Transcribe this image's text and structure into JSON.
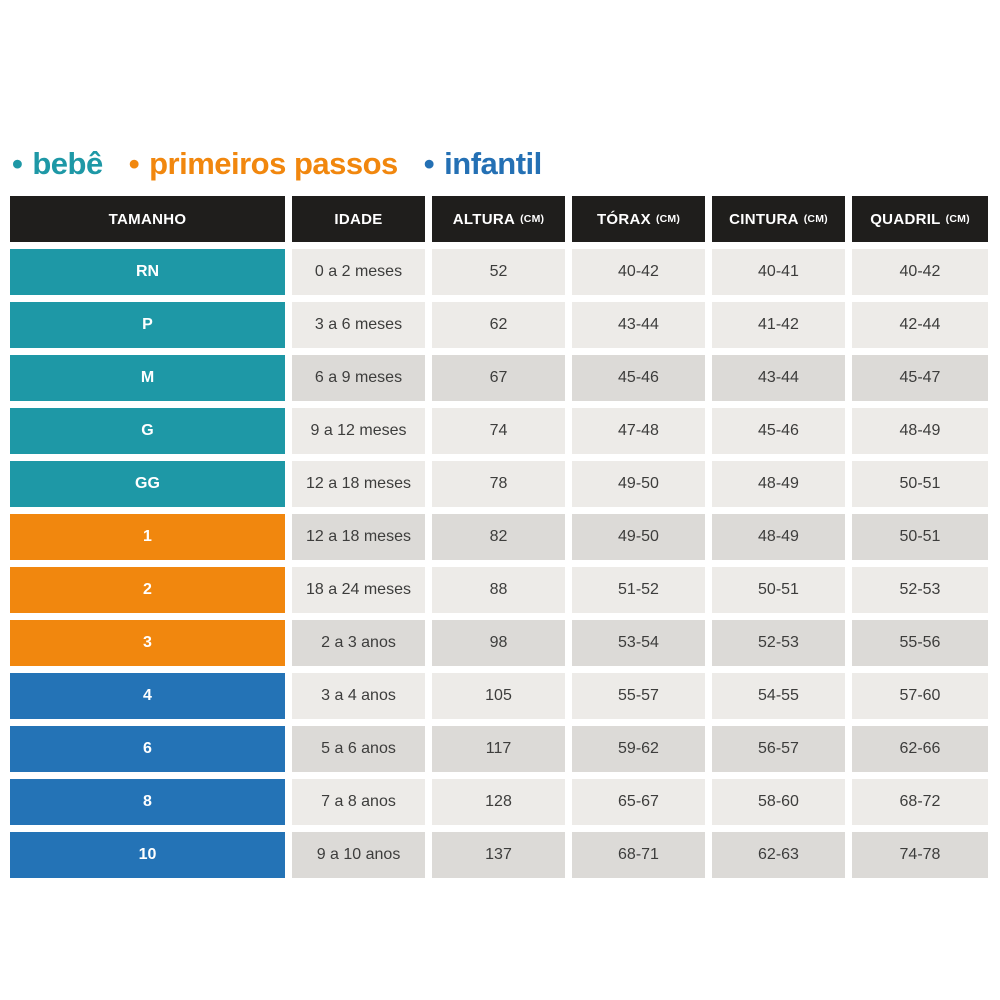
{
  "legend": {
    "bullet": "•",
    "items": [
      {
        "label": "bebê",
        "color": "#1e98a6",
        "group": "bebe"
      },
      {
        "label": "primeiros passos",
        "color": "#f1870e",
        "group": "primeiros-passos"
      },
      {
        "label": "infantil",
        "color": "#2470b4",
        "group": "infantil"
      }
    ]
  },
  "colors": {
    "header_bg": "#1f1e1c",
    "header_text": "#ffffff",
    "row_light_bg": "#edebe8",
    "row_dark_bg": "#dcdad7",
    "cell_text": "#3d3d3c",
    "group_bebe": "#1e98a6",
    "group_primeiros_passos": "#f1870e",
    "group_infantil": "#2473b6"
  },
  "table": {
    "headers": [
      {
        "label": "TAMANHO",
        "unit": ""
      },
      {
        "label": "IDADE",
        "unit": ""
      },
      {
        "label": "ALTURA",
        "unit": "(CM)"
      },
      {
        "label": "TÓRAX",
        "unit": "(CM)"
      },
      {
        "label": "CINTURA",
        "unit": "(CM)"
      },
      {
        "label": "QUADRIL",
        "unit": "(CM)"
      }
    ],
    "rows": [
      {
        "size": "RN",
        "group": "bebe",
        "shade": "light",
        "idade": "0 a 2 meses",
        "altura": "52",
        "torax": "40-42",
        "cintura": "40-41",
        "quadril": "40-42"
      },
      {
        "size": "P",
        "group": "bebe",
        "shade": "light",
        "idade": "3 a 6 meses",
        "altura": "62",
        "torax": "43-44",
        "cintura": "41-42",
        "quadril": "42-44"
      },
      {
        "size": "M",
        "group": "bebe",
        "shade": "dark",
        "idade": "6 a 9 meses",
        "altura": "67",
        "torax": "45-46",
        "cintura": "43-44",
        "quadril": "45-47"
      },
      {
        "size": "G",
        "group": "bebe",
        "shade": "light",
        "idade": "9 a 12 meses",
        "altura": "74",
        "torax": "47-48",
        "cintura": "45-46",
        "quadril": "48-49"
      },
      {
        "size": "GG",
        "group": "bebe",
        "shade": "light",
        "idade": "12 a 18 meses",
        "altura": "78",
        "torax": "49-50",
        "cintura": "48-49",
        "quadril": "50-51"
      },
      {
        "size": "1",
        "group": "primeiros-passos",
        "shade": "dark",
        "idade": "12 a 18 meses",
        "altura": "82",
        "torax": "49-50",
        "cintura": "48-49",
        "quadril": "50-51"
      },
      {
        "size": "2",
        "group": "primeiros-passos",
        "shade": "light",
        "idade": "18 a 24 meses",
        "altura": "88",
        "torax": "51-52",
        "cintura": "50-51",
        "quadril": "52-53"
      },
      {
        "size": "3",
        "group": "primeiros-passos",
        "shade": "dark",
        "idade": "2 a 3 anos",
        "altura": "98",
        "torax": "53-54",
        "cintura": "52-53",
        "quadril": "55-56"
      },
      {
        "size": "4",
        "group": "infantil",
        "shade": "light",
        "idade": "3 a 4 anos",
        "altura": "105",
        "torax": "55-57",
        "cintura": "54-55",
        "quadril": "57-60"
      },
      {
        "size": "6",
        "group": "infantil",
        "shade": "dark",
        "idade": "5 a 6 anos",
        "altura": "117",
        "torax": "59-62",
        "cintura": "56-57",
        "quadril": "62-66"
      },
      {
        "size": "8",
        "group": "infantil",
        "shade": "light",
        "idade": "7 a 8 anos",
        "altura": "128",
        "torax": "65-67",
        "cintura": "58-60",
        "quadril": "68-72"
      },
      {
        "size": "10",
        "group": "infantil",
        "shade": "dark",
        "idade": "9 a 10 anos",
        "altura": "137",
        "torax": "68-71",
        "cintura": "62-63",
        "quadril": "74-78"
      }
    ]
  },
  "chart_data": {
    "type": "table",
    "title": "",
    "legend_entries": [
      "bebê",
      "primeiros passos",
      "infantil"
    ],
    "columns": [
      "TAMANHO",
      "IDADE",
      "ALTURA (CM)",
      "TÓRAX (CM)",
      "CINTURA (CM)",
      "QUADRIL (CM)"
    ],
    "rows": [
      [
        "RN",
        "0 a 2 meses",
        "52",
        "40-42",
        "40-41",
        "40-42"
      ],
      [
        "P",
        "3 a 6 meses",
        "62",
        "43-44",
        "41-42",
        "42-44"
      ],
      [
        "M",
        "6 a 9 meses",
        "67",
        "45-46",
        "43-44",
        "45-47"
      ],
      [
        "G",
        "9 a 12 meses",
        "74",
        "47-48",
        "45-46",
        "48-49"
      ],
      [
        "GG",
        "12 a 18 meses",
        "78",
        "49-50",
        "48-49",
        "50-51"
      ],
      [
        "1",
        "12 a 18 meses",
        "82",
        "49-50",
        "48-49",
        "50-51"
      ],
      [
        "2",
        "18 a 24 meses",
        "88",
        "51-52",
        "50-51",
        "52-53"
      ],
      [
        "3",
        "2 a 3 anos",
        "98",
        "53-54",
        "52-53",
        "55-56"
      ],
      [
        "4",
        "3 a 4 anos",
        "105",
        "55-57",
        "54-55",
        "57-60"
      ],
      [
        "6",
        "5 a 6 anos",
        "117",
        "59-62",
        "56-57",
        "62-66"
      ],
      [
        "8",
        "7 a 8 anos",
        "128",
        "65-67",
        "58-60",
        "68-72"
      ],
      [
        "10",
        "9 a 10 anos",
        "137",
        "68-71",
        "62-63",
        "74-78"
      ]
    ],
    "row_groups": [
      "bebe",
      "bebe",
      "bebe",
      "bebe",
      "bebe",
      "primeiros-passos",
      "primeiros-passos",
      "primeiros-passos",
      "infantil",
      "infantil",
      "infantil",
      "infantil"
    ]
  }
}
